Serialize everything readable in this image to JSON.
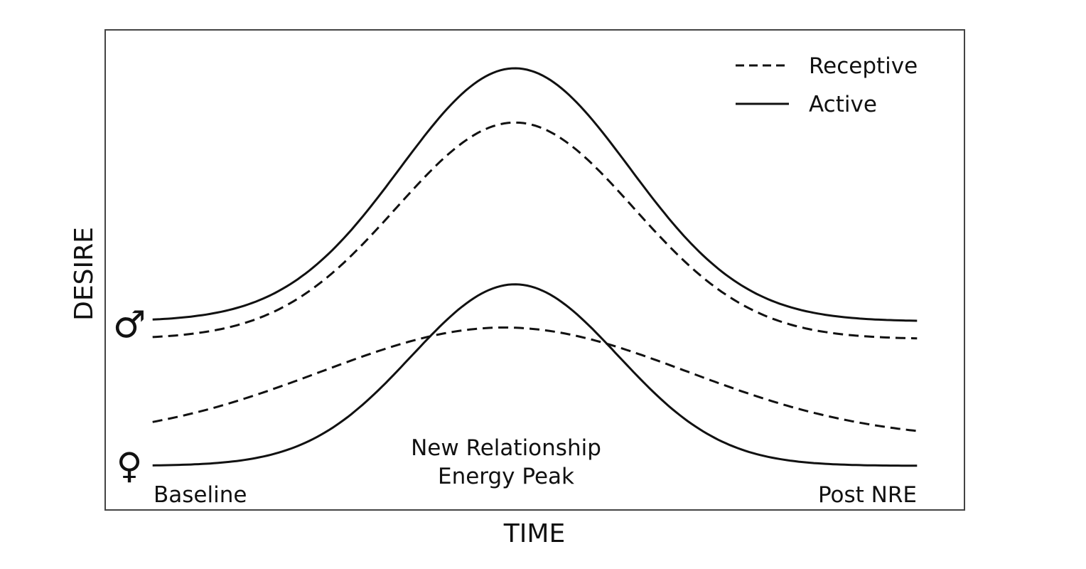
{
  "chart_data": {
    "type": "line",
    "title": "",
    "xlabel": "TIME",
    "ylabel": "DESIRE",
    "xlim": [
      -0.062,
      1.062
    ],
    "ylim": [
      0,
      100
    ],
    "grid": false,
    "legend": {
      "placement": "top-right",
      "entries": [
        {
          "label": "Receptive",
          "style": "dashed"
        },
        {
          "label": "Active",
          "style": "solid"
        }
      ]
    },
    "series": [
      {
        "name": "Male Active",
        "group": "male",
        "style": "solid",
        "baseline": 39.3,
        "peak": 92,
        "peak_x": 0.474,
        "sigma": 0.15
      },
      {
        "name": "Male Receptive",
        "group": "male",
        "style": "dashed",
        "baseline": 35.6,
        "peak": 80.7,
        "peak_x": 0.474,
        "sigma": 0.155
      },
      {
        "name": "Female Active",
        "group": "female",
        "style": "solid",
        "baseline": 9.2,
        "peak": 47,
        "peak_x": 0.474,
        "sigma": 0.135
      },
      {
        "name": "Female Receptive",
        "group": "female",
        "style": "dashed",
        "baseline": 14.6,
        "peak": 38,
        "peak_x": 0.46,
        "sigma": 0.24
      }
    ],
    "annotations": {
      "male_symbol": "♂",
      "female_symbol": "♀",
      "baseline": "Baseline",
      "peak_line1": "New Relationship",
      "peak_line2": "Energy Peak",
      "post": "Post NRE"
    }
  }
}
